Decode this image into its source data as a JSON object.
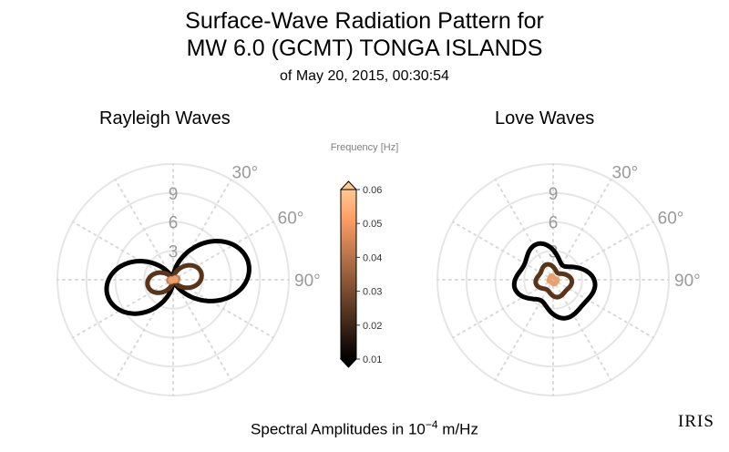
{
  "title": {
    "line1": "Surface-Wave Radiation Pattern for",
    "line2": "MW 6.0 (GCMT) TONGA ISLANDS",
    "line3": "of May 20, 2015, 00:30:54"
  },
  "footer": {
    "prefix": "Spectral Amplitudes in 10",
    "exponent": "−4",
    "unit": " m/Hz"
  },
  "logo_text": "IRIS",
  "chart_data": [
    {
      "type": "polar-line",
      "title": "Rayleigh Waves",
      "radial_ticks": [
        "3",
        "6",
        "9"
      ],
      "radial_max": 12,
      "angle_ticks": [
        "30°",
        "60°",
        "90°"
      ],
      "grid": true,
      "series": [
        {
          "frequency": 0.01,
          "color": "#000000",
          "lobe_a": 8.0,
          "lobe_b": 7.0,
          "axis_deg": 78,
          "floor": 0.3
        },
        {
          "frequency": 0.02,
          "color": "#5a3418",
          "lobe_a": 3.0,
          "lobe_b": 2.7,
          "axis_deg": 78,
          "floor": 0.3
        },
        {
          "frequency": 0.03,
          "color": "#c87f52",
          "lobe_a": 0.55,
          "lobe_b": 0.5,
          "axis_deg": 78,
          "floor": 0.3
        },
        {
          "frequency": 0.04,
          "color": "#e8a070",
          "lobe_a": 0.3,
          "lobe_b": 0.28,
          "axis_deg": 78,
          "floor": 0.3
        }
      ]
    },
    {
      "type": "polar-line",
      "title": "Love Waves",
      "radial_ticks": [
        "3",
        "6",
        "9"
      ],
      "radial_max": 12,
      "angle_ticks": [
        "30°",
        "60°",
        "90°"
      ],
      "grid": true,
      "series": [
        {
          "frequency": 0.01,
          "color": "#000000",
          "base": 1.2,
          "lobes": [
            [
              95,
              3.0
            ],
            [
              162,
              2.8
            ],
            [
              258,
              2.8
            ],
            [
              335,
              2.8
            ]
          ]
        },
        {
          "frequency": 0.02,
          "color": "#5a3418",
          "base": 0.6,
          "lobes": [
            [
              95,
              1.3
            ],
            [
              165,
              1.2
            ],
            [
              258,
              1.2
            ],
            [
              335,
              1.1
            ]
          ]
        },
        {
          "frequency": 0.04,
          "color": "#e8a070",
          "base": 0.15,
          "lobes": [
            [
              95,
              0.3
            ],
            [
              165,
              0.3
            ],
            [
              258,
              0.3
            ],
            [
              335,
              0.3
            ]
          ]
        }
      ]
    },
    {
      "type": "colorbar",
      "title": "Frequency [Hz]",
      "range": [
        0.01,
        0.06
      ],
      "ticks": [
        "0.01",
        "0.02",
        "0.03",
        "0.04",
        "0.05",
        "0.06"
      ],
      "colormap": "copper",
      "colors": [
        "#000000",
        "#331f14",
        "#663f28",
        "#995f3d",
        "#cc7f51",
        "#ffa066",
        "#ffc890"
      ]
    }
  ]
}
